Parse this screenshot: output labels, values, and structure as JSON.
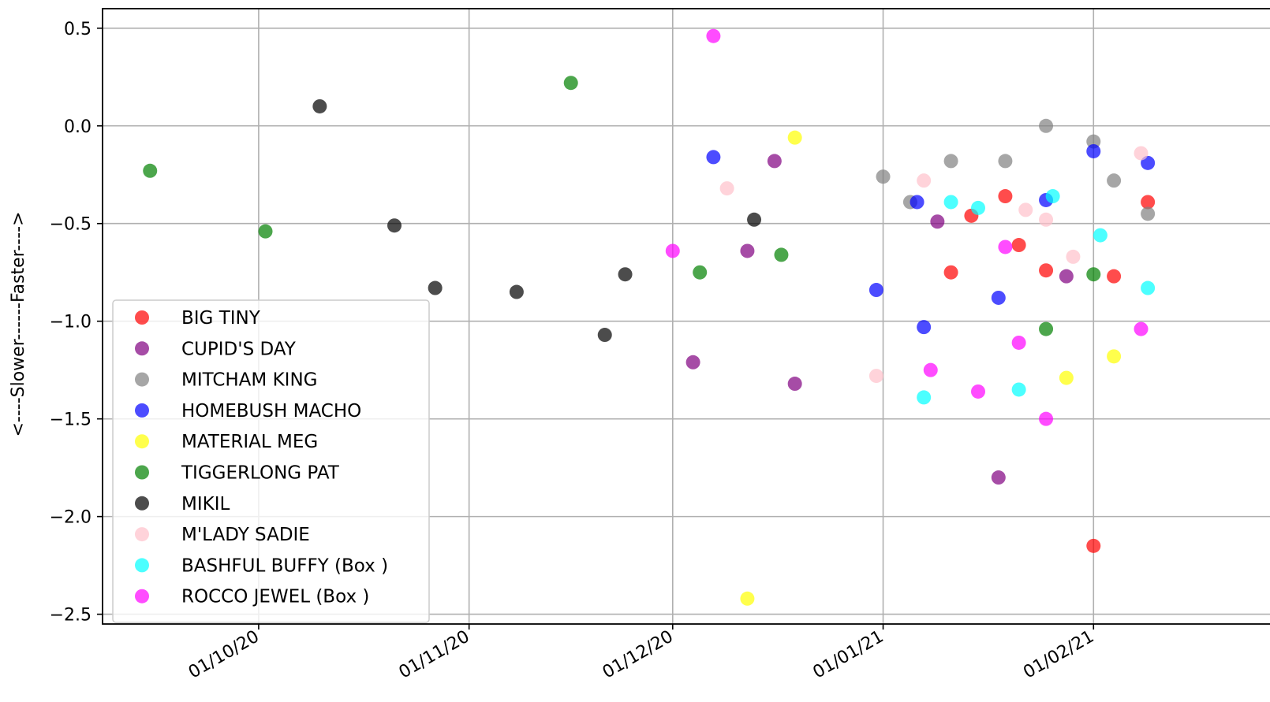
{
  "chart_data": {
    "type": "scatter",
    "title": "",
    "xlabel": "",
    "ylabel": "<----Slower------Faster---->",
    "x_axis_type": "date",
    "xlim": [
      "2020-09-08",
      "2021-02-27"
    ],
    "ylim": [
      -2.55,
      0.6
    ],
    "x_ticks": [
      {
        "date": "2020-10-01",
        "label": "01/10/20"
      },
      {
        "date": "2020-11-01",
        "label": "01/11/20"
      },
      {
        "date": "2020-12-01",
        "label": "01/12/20"
      },
      {
        "date": "2021-01-01",
        "label": "01/01/21"
      },
      {
        "date": "2021-02-01",
        "label": "01/02/21"
      }
    ],
    "y_ticks": [
      0.5,
      0.0,
      -0.5,
      -1.0,
      -1.5,
      -2.0,
      -2.5
    ],
    "y_tick_labels": [
      "0.5",
      "0.0",
      "−0.5",
      "−1.0",
      "−1.5",
      "−2.0",
      "−2.5"
    ],
    "grid": true,
    "legend_position": "lower-left",
    "marker_opacity": 0.7,
    "series": [
      {
        "name": "BIG TINY",
        "color": "#ff0000",
        "points": [
          {
            "x": "2021-01-11",
            "y": -0.75
          },
          {
            "x": "2021-01-14",
            "y": -0.46
          },
          {
            "x": "2021-01-19",
            "y": -0.36
          },
          {
            "x": "2021-01-21",
            "y": -0.61
          },
          {
            "x": "2021-01-25",
            "y": -0.74
          },
          {
            "x": "2021-02-01",
            "y": -2.15
          },
          {
            "x": "2021-02-04",
            "y": -0.77
          },
          {
            "x": "2021-02-09",
            "y": -0.39
          }
        ]
      },
      {
        "name": "CUPID'S DAY",
        "color": "#800080",
        "points": [
          {
            "x": "2020-12-04",
            "y": -1.21
          },
          {
            "x": "2020-12-12",
            "y": -0.64
          },
          {
            "x": "2020-12-16",
            "y": -0.18
          },
          {
            "x": "2020-12-19",
            "y": -1.32
          },
          {
            "x": "2021-01-09",
            "y": -0.49
          },
          {
            "x": "2021-01-18",
            "y": -1.8
          },
          {
            "x": "2021-01-28",
            "y": -0.77
          }
        ]
      },
      {
        "name": "MITCHAM KING",
        "color": "#808080",
        "points": [
          {
            "x": "2021-01-01",
            "y": -0.26
          },
          {
            "x": "2021-01-05",
            "y": -0.39
          },
          {
            "x": "2021-01-11",
            "y": -0.18
          },
          {
            "x": "2021-01-19",
            "y": -0.18
          },
          {
            "x": "2021-01-25",
            "y": 0.0
          },
          {
            "x": "2021-02-01",
            "y": -0.08
          },
          {
            "x": "2021-02-04",
            "y": -0.28
          },
          {
            "x": "2021-02-09",
            "y": -0.45
          }
        ]
      },
      {
        "name": "HOMEBUSH MACHO",
        "color": "#0000ff",
        "points": [
          {
            "x": "2020-12-07",
            "y": -0.16
          },
          {
            "x": "2020-12-31",
            "y": -0.84
          },
          {
            "x": "2021-01-06",
            "y": -0.39
          },
          {
            "x": "2021-01-07",
            "y": -1.03
          },
          {
            "x": "2021-01-18",
            "y": -0.88
          },
          {
            "x": "2021-01-25",
            "y": -0.38
          },
          {
            "x": "2021-02-01",
            "y": -0.13
          },
          {
            "x": "2021-02-09",
            "y": -0.19
          }
        ]
      },
      {
        "name": "MATERIAL MEG",
        "color": "#ffff00",
        "points": [
          {
            "x": "2020-12-12",
            "y": -2.42
          },
          {
            "x": "2020-12-19",
            "y": -0.06
          },
          {
            "x": "2021-01-28",
            "y": -1.29
          },
          {
            "x": "2021-02-04",
            "y": -1.18
          }
        ]
      },
      {
        "name": "TIGGERLONG PAT",
        "color": "#008000",
        "points": [
          {
            "x": "2020-09-15",
            "y": -0.23
          },
          {
            "x": "2020-10-02",
            "y": -0.54
          },
          {
            "x": "2020-11-16",
            "y": 0.22
          },
          {
            "x": "2020-12-05",
            "y": -0.75
          },
          {
            "x": "2020-12-17",
            "y": -0.66
          },
          {
            "x": "2021-01-25",
            "y": -1.04
          },
          {
            "x": "2021-02-01",
            "y": -0.76
          }
        ]
      },
      {
        "name": "MIKIL",
        "color": "#000000",
        "points": [
          {
            "x": "2020-10-10",
            "y": 0.1
          },
          {
            "x": "2020-10-21",
            "y": -0.51
          },
          {
            "x": "2020-10-27",
            "y": -0.83
          },
          {
            "x": "2020-11-08",
            "y": -0.85
          },
          {
            "x": "2020-11-21",
            "y": -1.07
          },
          {
            "x": "2020-11-24",
            "y": -0.76
          },
          {
            "x": "2020-12-13",
            "y": -0.48
          }
        ]
      },
      {
        "name": "M'LADY SADIE",
        "color": "#ffc0cb",
        "points": [
          {
            "x": "2020-12-09",
            "y": -0.32
          },
          {
            "x": "2020-12-31",
            "y": -1.28
          },
          {
            "x": "2021-01-07",
            "y": -0.28
          },
          {
            "x": "2021-01-22",
            "y": -0.43
          },
          {
            "x": "2021-01-25",
            "y": -0.48
          },
          {
            "x": "2021-01-29",
            "y": -0.67
          },
          {
            "x": "2021-02-08",
            "y": -0.14
          }
        ]
      },
      {
        "name": "BASHFUL BUFFY (Box )",
        "color": "#00ffff",
        "points": [
          {
            "x": "2021-01-07",
            "y": -1.39
          },
          {
            "x": "2021-01-11",
            "y": -0.39
          },
          {
            "x": "2021-01-15",
            "y": -0.42
          },
          {
            "x": "2021-01-21",
            "y": -1.35
          },
          {
            "x": "2021-01-26",
            "y": -0.36
          },
          {
            "x": "2021-02-02",
            "y": -0.56
          },
          {
            "x": "2021-02-09",
            "y": -0.83
          }
        ]
      },
      {
        "name": "ROCCO JEWEL (Box )",
        "color": "#ff00ff",
        "points": [
          {
            "x": "2020-12-01",
            "y": -0.64
          },
          {
            "x": "2020-12-07",
            "y": 0.46
          },
          {
            "x": "2021-01-08",
            "y": -1.25
          },
          {
            "x": "2021-01-15",
            "y": -1.36
          },
          {
            "x": "2021-01-19",
            "y": -0.62
          },
          {
            "x": "2021-01-21",
            "y": -1.11
          },
          {
            "x": "2021-01-25",
            "y": -1.5
          },
          {
            "x": "2021-02-08",
            "y": -1.04
          }
        ]
      }
    ]
  }
}
